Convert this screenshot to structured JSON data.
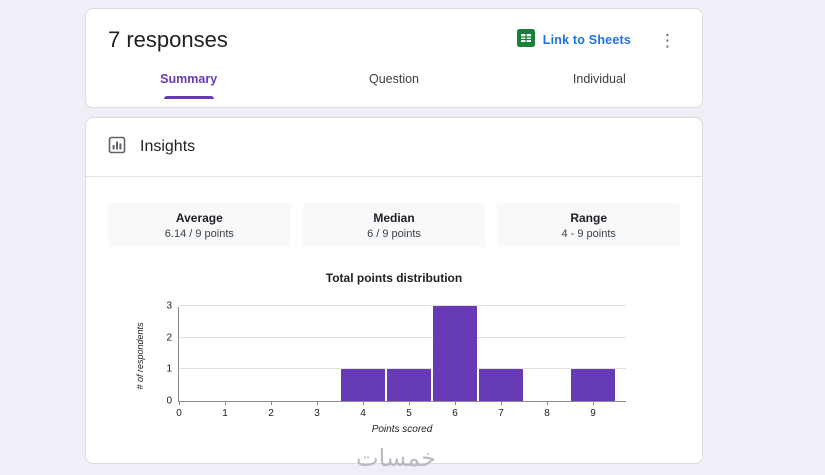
{
  "header": {
    "title": "7 responses",
    "link_to_sheets": "Link to Sheets",
    "menu_icon": "kebab-menu",
    "tabs": [
      {
        "label": "Summary",
        "active": true
      },
      {
        "label": "Question",
        "active": false
      },
      {
        "label": "Individual",
        "active": false
      }
    ]
  },
  "insights": {
    "title": "Insights",
    "stats": [
      {
        "label": "Average",
        "value": "6.14 / 9 points"
      },
      {
        "label": "Median",
        "value": "6 / 9 points"
      },
      {
        "label": "Range",
        "value": "4 - 9 points"
      }
    ]
  },
  "chart_data": {
    "type": "bar",
    "title": "Total points distribution",
    "xlabel": "Points scored",
    "ylabel": "# of respondents",
    "x": [
      0,
      1,
      2,
      3,
      4,
      5,
      6,
      7,
      8,
      9
    ],
    "values": [
      0,
      0,
      0,
      0,
      1,
      1,
      3,
      1,
      0,
      1
    ],
    "ylim": [
      0,
      3
    ],
    "yticks": [
      0,
      1,
      2,
      3
    ],
    "bar_color": "#673ab7",
    "grid": true,
    "legend": "none"
  },
  "colors": {
    "accent_purple": "#673ab7",
    "link_blue": "#1a73e8",
    "sheets_green": "#188038",
    "background": "#f0eef6"
  },
  "watermark": "خمسات"
}
